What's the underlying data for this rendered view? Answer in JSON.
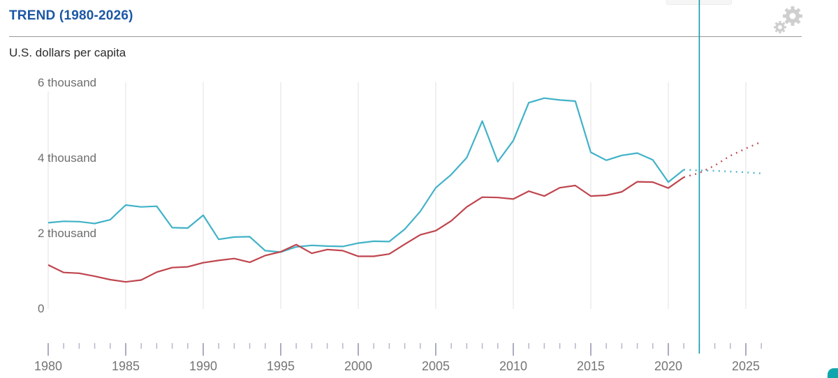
{
  "header": {
    "title": "TREND (1980-2026)",
    "subtitle": "U.S. dollars per capita",
    "settings_icon": "gear-icon"
  },
  "colors": {
    "title_text": "#1c57a5",
    "series_teal": "#41b2c8",
    "series_red": "#bf454e",
    "now_line": "#0f9aa9",
    "gridline": "#e0e0e0",
    "major_tick": "#8f90aa",
    "minor_tick": "#b5b6c9",
    "axis_label_text": "#757575",
    "y_label_text": "#6e6e6e",
    "corner_button": "#10a6ae",
    "gear_icon": "#cfcfcf"
  },
  "chart_data": {
    "type": "line",
    "title": "TREND (1980-2026)",
    "ylabel": "U.S. dollars per capita",
    "xlim": [
      1980,
      2026
    ],
    "ylim": [
      0,
      6000
    ],
    "grid": "vertical-only",
    "legend": "none",
    "x_major_ticks": [
      1980,
      1985,
      1990,
      1995,
      2000,
      2005,
      2010,
      2015,
      2020,
      2025
    ],
    "y_ticks": [
      {
        "value": 0,
        "label": "0"
      },
      {
        "value": 2000,
        "label": "2 thousand"
      },
      {
        "value": 4000,
        "label": "4 thousand"
      },
      {
        "value": 6000,
        "label": "6 thousand"
      }
    ],
    "projection_start_year": 2021,
    "now_line_year": 2022,
    "projection_style": "dotted",
    "years": [
      1980,
      1981,
      1982,
      1983,
      1984,
      1985,
      1986,
      1987,
      1988,
      1989,
      1990,
      1991,
      1992,
      1993,
      1994,
      1995,
      1996,
      1997,
      1998,
      1999,
      2000,
      2001,
      2002,
      2003,
      2004,
      2005,
      2006,
      2007,
      2008,
      2009,
      2010,
      2011,
      2012,
      2013,
      2014,
      2015,
      2016,
      2017,
      2018,
      2019,
      2020,
      2021,
      2022,
      2023,
      2024,
      2025,
      2026
    ],
    "series": [
      {
        "name": "series-teal",
        "color": "#41b2c8",
        "values": [
          2270,
          2310,
          2300,
          2250,
          2350,
          2740,
          2690,
          2710,
          2140,
          2130,
          2470,
          1830,
          1890,
          1900,
          1530,
          1490,
          1630,
          1670,
          1650,
          1640,
          1730,
          1780,
          1770,
          2100,
          2570,
          3200,
          3550,
          4000,
          4970,
          3890,
          4450,
          5460,
          5580,
          5530,
          5500,
          4140,
          3930,
          4060,
          4120,
          3940,
          3350,
          3680,
          3660,
          3650,
          3630,
          3610,
          3580
        ]
      },
      {
        "name": "series-red",
        "color": "#bf454e",
        "values": [
          1150,
          950,
          930,
          850,
          760,
          700,
          750,
          960,
          1080,
          1100,
          1210,
          1270,
          1320,
          1220,
          1400,
          1500,
          1690,
          1460,
          1560,
          1530,
          1380,
          1380,
          1440,
          1700,
          1950,
          2060,
          2320,
          2690,
          2950,
          2940,
          2900,
          3110,
          2980,
          3200,
          3260,
          2980,
          3000,
          3090,
          3360,
          3350,
          3190,
          3480,
          3590,
          3790,
          4050,
          4240,
          4420
        ]
      }
    ]
  }
}
